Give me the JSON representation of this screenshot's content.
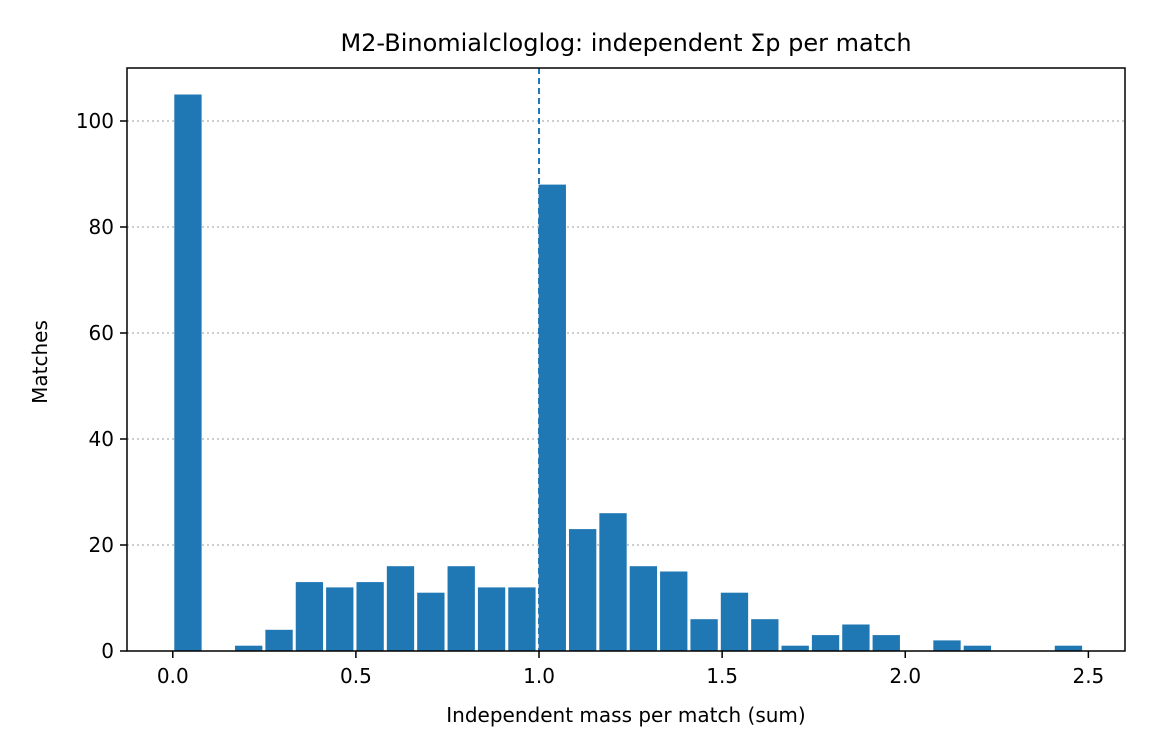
{
  "chart_data": {
    "type": "bar",
    "title": "M2-Binomialcloglog: independent Σp per match",
    "xlabel": "Independent mass per match (sum)",
    "ylabel": "Matches",
    "xlim": [
      -0.125,
      2.6
    ],
    "ylim": [
      0,
      110
    ],
    "x_ticks": [
      0.0,
      0.5,
      1.0,
      1.5,
      2.0,
      2.5
    ],
    "x_tick_labels": [
      "0.0",
      "0.5",
      "1.0",
      "1.5",
      "2.0",
      "2.5"
    ],
    "y_ticks": [
      0,
      20,
      40,
      60,
      80,
      100
    ],
    "y_tick_labels": [
      "0",
      "20",
      "40",
      "60",
      "80",
      "100"
    ],
    "grid": "y-dotted",
    "reference_line": {
      "x": 1.0,
      "style": "dashed",
      "color": "#1f77b4"
    },
    "bar_color": "#1f77b4",
    "bin_width": 0.0829,
    "bins": [
      {
        "x_start": 0.0,
        "value": 105
      },
      {
        "x_start": 0.0829,
        "value": 0
      },
      {
        "x_start": 0.1658,
        "value": 1
      },
      {
        "x_start": 0.2487,
        "value": 4
      },
      {
        "x_start": 0.3316,
        "value": 13
      },
      {
        "x_start": 0.4145,
        "value": 12
      },
      {
        "x_start": 0.4974,
        "value": 13
      },
      {
        "x_start": 0.5803,
        "value": 16
      },
      {
        "x_start": 0.6632,
        "value": 11
      },
      {
        "x_start": 0.7461,
        "value": 16
      },
      {
        "x_start": 0.829,
        "value": 12
      },
      {
        "x_start": 0.9119,
        "value": 12
      },
      {
        "x_start": 0.9948,
        "value": 88
      },
      {
        "x_start": 1.0777,
        "value": 23
      },
      {
        "x_start": 1.1606,
        "value": 26
      },
      {
        "x_start": 1.2435,
        "value": 16
      },
      {
        "x_start": 1.3264,
        "value": 15
      },
      {
        "x_start": 1.4093,
        "value": 6
      },
      {
        "x_start": 1.4922,
        "value": 11
      },
      {
        "x_start": 1.5751,
        "value": 6
      },
      {
        "x_start": 1.658,
        "value": 1
      },
      {
        "x_start": 1.7409,
        "value": 3
      },
      {
        "x_start": 1.8238,
        "value": 5
      },
      {
        "x_start": 1.9067,
        "value": 3
      },
      {
        "x_start": 1.9896,
        "value": 0
      },
      {
        "x_start": 2.0725,
        "value": 2
      },
      {
        "x_start": 2.1554,
        "value": 1
      },
      {
        "x_start": 2.2383,
        "value": 0
      },
      {
        "x_start": 2.3212,
        "value": 0
      },
      {
        "x_start": 2.4041,
        "value": 1
      }
    ]
  }
}
